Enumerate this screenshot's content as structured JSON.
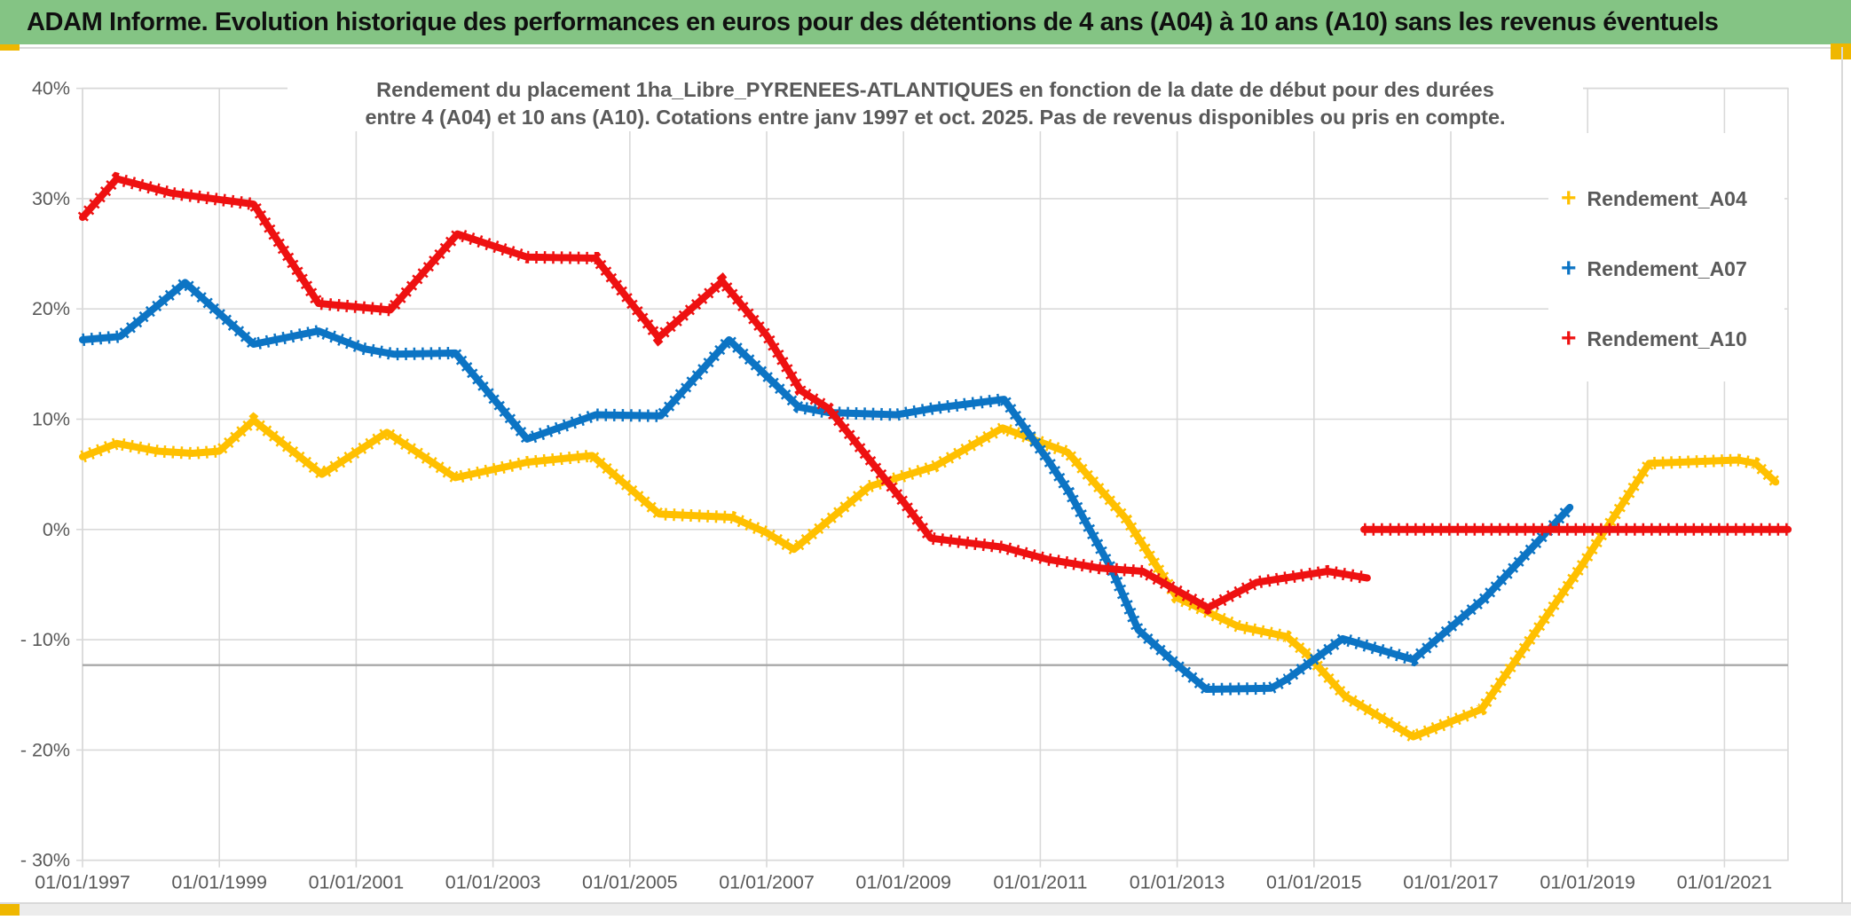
{
  "title_bar": {
    "text": "ADAM Informe. Evolution historique des performances en euros pour des détentions de 4 ans (A04) à 10 ans (A10) sans les revenus éventuels",
    "background": "#84C484"
  },
  "accents": {
    "gold": "#EFB700"
  },
  "chart": {
    "subtitle_line1": "Rendement du placement 1ha_Libre_PYRENEES-ATLANTIQUES en fonction de la date de début pour des durées",
    "subtitle_line2": "entre 4 (A04) et 10 ans (A10). Cotations entre janv 1997 et oct. 2025. Pas de revenus disponibles ou pris en compte.",
    "legend": [
      {
        "label": "Rendement_A04",
        "color": "#FFC000",
        "marker": "+"
      },
      {
        "label": "Rendement_A07",
        "color": "#0C74C4",
        "marker": "+"
      },
      {
        "label": "Rendement_A10",
        "color": "#EE1111",
        "marker": "+"
      }
    ]
  },
  "chart_data": {
    "type": "line",
    "title": "Rendement du placement 1ha_Libre_PYRENEES-ATLANTIQUES en fonction de la date de début pour des durées entre 4 (A04) et 10 ans (A10). Cotations entre janv 1997 et oct. 2025. Pas de revenus disponibles ou pris en compte.",
    "x_unit": "date de début (années décimales)",
    "y_unit": "rendement %",
    "grid": true,
    "legend_position": "right",
    "x_axis": {
      "tick_years": [
        1997,
        1999,
        2001,
        2003,
        2005,
        2007,
        2009,
        2011,
        2013,
        2015,
        2017,
        2019,
        2021
      ],
      "tick_labels": [
        "01/01/1997",
        "01/01/1999",
        "01/01/2001",
        "01/01/2003",
        "01/01/2005",
        "01/01/2007",
        "01/01/2009",
        "01/01/2011",
        "01/01/2013",
        "01/01/2015",
        "01/01/2017",
        "01/01/2019",
        "01/01/2021"
      ],
      "range_years": [
        1997,
        2021.95
      ]
    },
    "y_axis": {
      "tick_values": [
        40,
        30,
        20,
        10,
        0,
        -10,
        -20,
        -30
      ],
      "tick_labels": [
        "40%",
        "30%",
        "20%",
        "10%",
        "0%",
        "- 10%",
        "- 20%",
        "- 30%"
      ],
      "range": [
        -30,
        40
      ]
    },
    "reference_line": {
      "y": -12.3,
      "color": "#A8A8A8"
    },
    "gridline_color": "#D9D9D9",
    "axis_text_color": "#595959",
    "series": [
      {
        "name": "Rendement_A04",
        "color": "#FFC000",
        "segments": [
          [
            [
              1997.0,
              6.6
            ],
            [
              1997.5,
              7.8
            ],
            [
              1998.1,
              7.1
            ],
            [
              1998.6,
              6.9
            ],
            [
              1999.0,
              7.1
            ],
            [
              1999.5,
              9.9
            ],
            [
              2000.5,
              5.0
            ],
            [
              2001.0,
              7.0
            ],
            [
              2001.45,
              8.8
            ],
            [
              2002.45,
              4.7
            ],
            [
              2003.5,
              6.1
            ],
            [
              2004.45,
              6.7
            ],
            [
              2005.43,
              1.4
            ],
            [
              2006.5,
              1.1
            ],
            [
              2007.0,
              -0.3
            ],
            [
              2007.4,
              -1.8
            ],
            [
              2008.5,
              3.9
            ],
            [
              2009.45,
              5.7
            ],
            [
              2010.45,
              9.2
            ],
            [
              2011.4,
              7.0
            ],
            [
              2012.25,
              1.0
            ],
            [
              2013.0,
              -6.2
            ],
            [
              2013.9,
              -8.8
            ],
            [
              2014.6,
              -9.7
            ],
            [
              2014.9,
              -11.3
            ],
            [
              2015.45,
              -15.1
            ],
            [
              2016.45,
              -18.8
            ],
            [
              2017.45,
              -16.3
            ],
            [
              2018.9,
              -3.4
            ],
            [
              2019.9,
              6.0
            ],
            [
              2021.2,
              6.3
            ],
            [
              2021.45,
              6.0
            ],
            [
              2021.75,
              4.3
            ]
          ]
        ]
      },
      {
        "name": "Rendement_A07",
        "color": "#0C74C4",
        "segments": [
          [
            [
              1997.0,
              17.2
            ],
            [
              1997.55,
              17.5
            ],
            [
              1998.5,
              22.4
            ],
            [
              1999.5,
              16.8
            ],
            [
              2000.45,
              18.0
            ],
            [
              2001.1,
              16.4
            ],
            [
              2001.55,
              15.9
            ],
            [
              2002.45,
              16.0
            ],
            [
              2003.5,
              8.2
            ],
            [
              2004.5,
              10.4
            ],
            [
              2005.45,
              10.3
            ],
            [
              2006.45,
              17.2
            ],
            [
              2007.47,
              11.1
            ],
            [
              2007.9,
              10.6
            ],
            [
              2008.9,
              10.4
            ],
            [
              2009.45,
              11.0
            ],
            [
              2010.47,
              11.8
            ],
            [
              2011.1,
              6.4
            ],
            [
              2011.42,
              3.4
            ],
            [
              2012.05,
              -3.7
            ],
            [
              2012.43,
              -9.1
            ],
            [
              2012.95,
              -12.0
            ],
            [
              2013.43,
              -14.5
            ],
            [
              2014.37,
              -14.4
            ],
            [
              2014.6,
              -13.6
            ],
            [
              2015.42,
              -9.9
            ],
            [
              2016.45,
              -11.8
            ],
            [
              2017.5,
              -6.2
            ],
            [
              2018.74,
              2.0
            ]
          ]
        ]
      },
      {
        "name": "Rendement_A10",
        "color": "#EE1111",
        "segments": [
          [
            [
              1997.0,
              28.3
            ],
            [
              1997.5,
              31.8
            ],
            [
              1998.3,
              30.5
            ],
            [
              1999.5,
              29.5
            ],
            [
              2000.45,
              20.5
            ],
            [
              2001.5,
              19.9
            ],
            [
              2002.48,
              26.8
            ],
            [
              2003.5,
              24.7
            ],
            [
              2004.5,
              24.6
            ],
            [
              2005.42,
              17.4
            ],
            [
              2006.35,
              22.5
            ],
            [
              2007.0,
              17.6
            ],
            [
              2007.5,
              12.6
            ],
            [
              2007.9,
              11.0
            ],
            [
              2009.0,
              2.5
            ],
            [
              2009.4,
              -0.8
            ],
            [
              2010.45,
              -1.6
            ],
            [
              2011.1,
              -2.7
            ],
            [
              2011.87,
              -3.5
            ],
            [
              2012.5,
              -3.8
            ],
            [
              2013.45,
              -7.1
            ],
            [
              2014.16,
              -4.8
            ],
            [
              2015.2,
              -3.8
            ],
            [
              2015.78,
              -4.4
            ]
          ],
          [
            [
              2015.73,
              0.0
            ],
            [
              2021.93,
              0.0
            ]
          ]
        ]
      }
    ]
  }
}
